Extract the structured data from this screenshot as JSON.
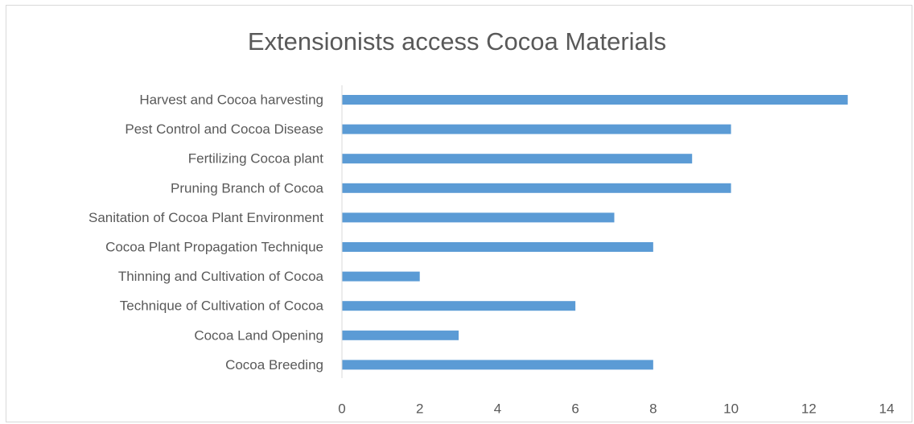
{
  "chart_data": {
    "type": "bar",
    "orientation": "horizontal",
    "title": "Extensionists access Cocoa Materials",
    "xlabel": "",
    "ylabel": "",
    "categories": [
      "Harvest and Cocoa harvesting",
      "Pest Control and Cocoa Disease",
      "Fertilizing Cocoa plant",
      "Pruning Branch of Cocoa",
      "Sanitation of Cocoa Plant Environment",
      "Cocoa Plant Propagation Technique",
      "Thinning and Cultivation of Cocoa",
      "Technique of Cultivation of Cocoa",
      "Cocoa Land Opening",
      "Cocoa Breeding"
    ],
    "values": [
      13,
      10,
      9,
      10,
      7,
      8,
      2,
      6,
      3,
      8
    ],
    "xlim": [
      0,
      14
    ],
    "xticks": [
      0,
      2,
      4,
      6,
      8,
      10,
      12,
      14
    ],
    "grid": false,
    "legend": "none",
    "bar_color": "#5b9bd5",
    "axis_color": "#d9d9d9",
    "text_color": "#595959"
  }
}
